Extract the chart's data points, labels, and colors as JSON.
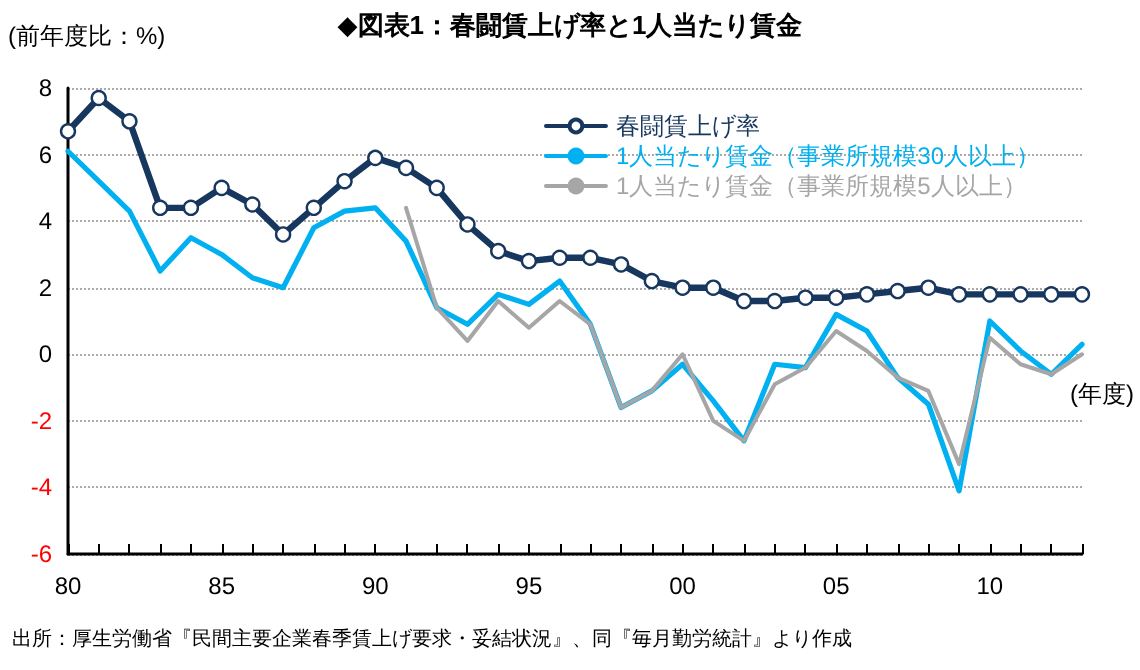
{
  "chart_data": {
    "type": "line",
    "title": "◆図表1：春闘賃上げ率と1人当たり賃金",
    "ylabel": "(前年度比：%)",
    "xlabel": "(年度)",
    "annotations": [
      "出所：厚生労働省『民間主要企業春季賃上げ要求・妥結状況』、同『毎月勤労統計』より作成"
    ],
    "x": [
      1980,
      1981,
      1982,
      1983,
      1984,
      1985,
      1986,
      1987,
      1988,
      1989,
      1990,
      1991,
      1992,
      1993,
      1994,
      1995,
      1996,
      1997,
      1998,
      1999,
      2000,
      2001,
      2002,
      2003,
      2004,
      2005,
      2006,
      2007,
      2008,
      2009,
      2010,
      2011,
      2012,
      2013
    ],
    "series": [
      {
        "name": "春闘賃上げ率",
        "color": "#17375e",
        "marker": "circle",
        "values": [
          6.7,
          7.7,
          7.0,
          4.4,
          4.4,
          5.0,
          4.5,
          3.6,
          4.4,
          5.2,
          5.9,
          5.6,
          5.0,
          3.9,
          3.1,
          2.8,
          2.9,
          2.9,
          2.7,
          2.2,
          2.0,
          2.0,
          1.6,
          1.6,
          1.7,
          1.7,
          1.8,
          1.9,
          2.0,
          1.8,
          1.8,
          1.8,
          1.8,
          1.8
        ]
      },
      {
        "name": "1人当たり賃金（事業所規模30人以上）",
        "color": "#00b0f0",
        "marker": "none",
        "values": [
          6.1,
          5.2,
          4.3,
          2.5,
          3.5,
          3.0,
          2.3,
          2.0,
          3.8,
          4.3,
          4.4,
          3.4,
          1.4,
          0.9,
          1.8,
          1.5,
          2.2,
          0.9,
          -1.6,
          -1.1,
          -0.3,
          -1.4,
          -2.6,
          -0.3,
          -0.4,
          1.2,
          0.7,
          -0.7,
          -1.5,
          -4.1,
          1.0,
          0.1,
          -0.6,
          0.3
        ]
      },
      {
        "name": "1人当たり賃金（事業所規模5人以上）",
        "color": "#a6a6a6",
        "marker": "none",
        "values": [
          null,
          null,
          null,
          null,
          null,
          null,
          null,
          null,
          null,
          null,
          null,
          4.4,
          1.4,
          0.4,
          1.6,
          0.8,
          1.6,
          0.9,
          -1.6,
          -1.1,
          0.0,
          -2.0,
          -2.6,
          -0.9,
          -0.4,
          0.7,
          0.1,
          -0.7,
          -1.1,
          -3.3,
          0.5,
          -0.3,
          -0.6,
          0.0
        ]
      }
    ],
    "xlim": [
      1980,
      2013
    ],
    "xticks": [
      {
        "value": 1980,
        "label": "80"
      },
      {
        "value": 1981,
        "label": null
      },
      {
        "value": 1982,
        "label": null
      },
      {
        "value": 1983,
        "label": null
      },
      {
        "value": 1984,
        "label": null
      },
      {
        "value": 1985,
        "label": "85"
      },
      {
        "value": 1986,
        "label": null
      },
      {
        "value": 1987,
        "label": null
      },
      {
        "value": 1988,
        "label": null
      },
      {
        "value": 1989,
        "label": null
      },
      {
        "value": 1990,
        "label": "90"
      },
      {
        "value": 1991,
        "label": null
      },
      {
        "value": 1992,
        "label": null
      },
      {
        "value": 1993,
        "label": null
      },
      {
        "value": 1994,
        "label": null
      },
      {
        "value": 1995,
        "label": "95"
      },
      {
        "value": 1996,
        "label": null
      },
      {
        "value": 1997,
        "label": null
      },
      {
        "value": 1998,
        "label": null
      },
      {
        "value": 1999,
        "label": null
      },
      {
        "value": 2000,
        "label": "00"
      },
      {
        "value": 2001,
        "label": null
      },
      {
        "value": 2002,
        "label": null
      },
      {
        "value": 2003,
        "label": null
      },
      {
        "value": 2004,
        "label": null
      },
      {
        "value": 2005,
        "label": "05"
      },
      {
        "value": 2006,
        "label": null
      },
      {
        "value": 2007,
        "label": null
      },
      {
        "value": 2008,
        "label": null
      },
      {
        "value": 2009,
        "label": null
      },
      {
        "value": 2010,
        "label": "10"
      },
      {
        "value": 2011,
        "label": null
      },
      {
        "value": 2012,
        "label": null
      },
      {
        "value": 2013,
        "label": null
      }
    ],
    "ylim": [
      -6,
      8
    ],
    "yticks": [
      -6,
      -4,
      -2,
      0,
      2,
      4,
      6,
      8
    ],
    "grid": "y",
    "legend": "top right",
    "line_style": "solid"
  }
}
